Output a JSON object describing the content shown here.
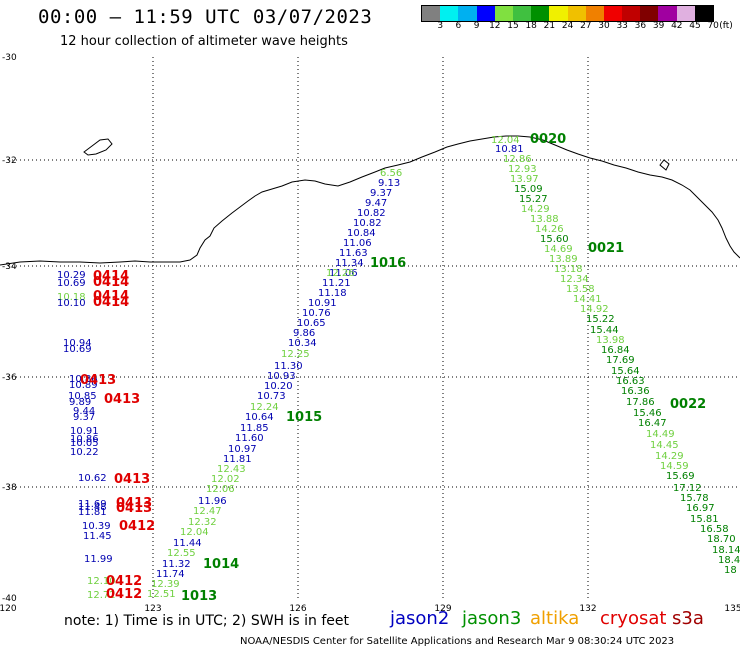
{
  "header": {
    "title": "00:00 – 11:59 UTC 03/07/2023",
    "subtitle": "12 hour collection of altimeter wave heights"
  },
  "color_scale": {
    "unit": "(ft)",
    "colors": [
      "#808080",
      "#00f0f0",
      "#00b0f0",
      "#0000ff",
      "#80e040",
      "#40c040",
      "#009000",
      "#f0f000",
      "#f0c000",
      "#f08000",
      "#f00000",
      "#c00000",
      "#800000",
      "#a000a0",
      "#e0b0e0",
      "#000000"
    ],
    "labels": [
      "3",
      "6",
      "9",
      "12",
      "15",
      "18",
      "21",
      "24",
      "27",
      "30",
      "33",
      "36",
      "39",
      "42",
      "45",
      "70"
    ]
  },
  "map": {
    "x_ticks": [
      "120",
      "123",
      "126",
      "129",
      "132",
      "135"
    ],
    "y_ticks": [
      "-30",
      "-32",
      "-34",
      "-36",
      "-38",
      "-40"
    ],
    "colors": {
      "jason2": "#0000b0",
      "jason3_light": "#70d040",
      "jason3_dark": "#008000",
      "cryosat": "#e00000",
      "coast": "#000000",
      "grid": "#000000"
    },
    "points": [
      {
        "t": "6.56",
        "c": "light"
      },
      {
        "t": "9.13",
        "c": "blue"
      },
      {
        "t": "9.37",
        "c": "blue"
      },
      {
        "t": "9.47",
        "c": "blue"
      },
      {
        "t": "10.82",
        "c": "blue"
      },
      {
        "t": "10.82",
        "c": "blue"
      },
      {
        "t": "10.84",
        "c": "blue"
      },
      {
        "t": "11.06",
        "c": "blue"
      },
      {
        "t": "11.63",
        "c": "blue"
      },
      {
        "t": "11.34",
        "c": "blue"
      },
      {
        "t": "11.06",
        "c": "blue"
      },
      {
        "t": "12.26",
        "c": "light"
      },
      {
        "t": "11.21",
        "c": "blue"
      },
      {
        "t": "11.18",
        "c": "blue"
      },
      {
        "t": "10.91",
        "c": "blue"
      },
      {
        "t": "10.76",
        "c": "blue"
      },
      {
        "t": "10.65",
        "c": "blue"
      },
      {
        "t": "9.86",
        "c": "blue"
      },
      {
        "t": "10.34",
        "c": "blue"
      },
      {
        "t": "12.25",
        "c": "light"
      },
      {
        "t": "11.30",
        "c": "blue"
      },
      {
        "t": "10.93",
        "c": "blue"
      },
      {
        "t": "10.20",
        "c": "blue"
      },
      {
        "t": "10.73",
        "c": "blue"
      },
      {
        "t": "12.24",
        "c": "light"
      },
      {
        "t": "10.64",
        "c": "blue"
      },
      {
        "t": "11.85",
        "c": "blue"
      },
      {
        "t": "11.60",
        "c": "blue"
      },
      {
        "t": "10.97",
        "c": "blue"
      },
      {
        "t": "11.81",
        "c": "blue"
      },
      {
        "t": "12.43",
        "c": "light"
      },
      {
        "t": "12.02",
        "c": "light"
      },
      {
        "t": "12.06",
        "c": "light"
      },
      {
        "t": "11.96",
        "c": "blue"
      },
      {
        "t": "12.47",
        "c": "light"
      },
      {
        "t": "12.32",
        "c": "light"
      },
      {
        "t": "12.04",
        "c": "light"
      },
      {
        "t": "11.44",
        "c": "blue"
      },
      {
        "t": "12.55",
        "c": "light"
      },
      {
        "t": "11.32",
        "c": "blue"
      },
      {
        "t": "11.74",
        "c": "blue"
      },
      {
        "t": "12.39",
        "c": "light"
      },
      {
        "t": "12.51",
        "c": "light"
      },
      {
        "t": "12.04",
        "c": "light"
      },
      {
        "t": "10.81",
        "c": "blue"
      },
      {
        "t": "12.86",
        "c": "light"
      },
      {
        "t": "12.93",
        "c": "light"
      },
      {
        "t": "13.97",
        "c": "light"
      },
      {
        "t": "15.09",
        "c": "dark"
      },
      {
        "t": "15.27",
        "c": "dark"
      },
      {
        "t": "14.29",
        "c": "light"
      },
      {
        "t": "13.88",
        "c": "light"
      },
      {
        "t": "14.26",
        "c": "light"
      },
      {
        "t": "15.60",
        "c": "dark"
      },
      {
        "t": "14.69",
        "c": "light"
      },
      {
        "t": "13.89",
        "c": "light"
      },
      {
        "t": "13.18",
        "c": "light"
      },
      {
        "t": "12.34",
        "c": "light"
      },
      {
        "t": "13.58",
        "c": "light"
      },
      {
        "t": "14.41",
        "c": "light"
      },
      {
        "t": "14.92",
        "c": "light"
      },
      {
        "t": "15.22",
        "c": "dark"
      },
      {
        "t": "15.44",
        "c": "dark"
      },
      {
        "t": "13.98",
        "c": "light"
      },
      {
        "t": "16.84",
        "c": "dark"
      },
      {
        "t": "17.69",
        "c": "dark"
      },
      {
        "t": "15.64",
        "c": "dark"
      },
      {
        "t": "16.63",
        "c": "dark"
      },
      {
        "t": "16.36",
        "c": "dark"
      },
      {
        "t": "17.86",
        "c": "dark"
      },
      {
        "t": "15.46",
        "c": "dark"
      },
      {
        "t": "16.47",
        "c": "dark"
      },
      {
        "t": "14.49",
        "c": "light"
      },
      {
        "t": "14.45",
        "c": "light"
      },
      {
        "t": "14.29",
        "c": "light"
      },
      {
        "t": "14.59",
        "c": "light"
      },
      {
        "t": "15.69",
        "c": "dark"
      },
      {
        "t": "17.12",
        "c": "dark"
      },
      {
        "t": "15.78",
        "c": "dark"
      },
      {
        "t": "16.97",
        "c": "dark"
      },
      {
        "t": "15.81",
        "c": "dark"
      },
      {
        "t": "16.58",
        "c": "dark"
      },
      {
        "t": "18.70",
        "c": "dark"
      },
      {
        "t": "18.14",
        "c": "dark"
      },
      {
        "t": "18.4",
        "c": "dark"
      },
      {
        "t": "18",
        "c": "dark"
      },
      {
        "t": "10.29",
        "c": "blue"
      },
      {
        "t": "10.69",
        "c": "blue"
      },
      {
        "t": "10.18",
        "c": "light"
      },
      {
        "t": "10.10",
        "c": "blue"
      },
      {
        "t": "10.94",
        "c": "blue"
      },
      {
        "t": "10.69",
        "c": "blue"
      },
      {
        "t": "10.86",
        "c": "blue"
      },
      {
        "t": "10.89",
        "c": "blue"
      },
      {
        "t": "10.85",
        "c": "blue"
      },
      {
        "t": "9.89",
        "c": "blue"
      },
      {
        "t": "9.44",
        "c": "blue"
      },
      {
        "t": "9.37",
        "c": "blue"
      },
      {
        "t": "10.91",
        "c": "blue"
      },
      {
        "t": "10.86",
        "c": "blue"
      },
      {
        "t": "10.05",
        "c": "blue"
      },
      {
        "t": "10.22",
        "c": "blue"
      },
      {
        "t": "10.62",
        "c": "blue"
      },
      {
        "t": "11.69",
        "c": "blue"
      },
      {
        "t": "11.81",
        "c": "blue"
      },
      {
        "t": "11.48",
        "c": "blue"
      },
      {
        "t": "10.39",
        "c": "blue"
      },
      {
        "t": "11.45",
        "c": "blue"
      },
      {
        "t": "11.99",
        "c": "blue"
      },
      {
        "t": "12.10",
        "c": "light"
      },
      {
        "t": "12.72",
        "c": "light"
      }
    ],
    "time_labels": [
      {
        "t": "0020",
        "c": "dark"
      },
      {
        "t": "0021",
        "c": "dark"
      },
      {
        "t": "0022",
        "c": "dark"
      },
      {
        "t": "1016",
        "c": "dark"
      },
      {
        "t": "1015",
        "c": "dark"
      },
      {
        "t": "1014",
        "c": "dark"
      },
      {
        "t": "1013",
        "c": "dark"
      },
      {
        "t": "0414",
        "c": "red"
      },
      {
        "t": "0414",
        "c": "red"
      },
      {
        "t": "0414",
        "c": "red"
      },
      {
        "t": "0414",
        "c": "red"
      },
      {
        "t": "0413",
        "c": "red"
      },
      {
        "t": "0413",
        "c": "red"
      },
      {
        "t": "0413",
        "c": "red"
      },
      {
        "t": "0413",
        "c": "red"
      },
      {
        "t": "0413",
        "c": "red"
      },
      {
        "t": "0412",
        "c": "red"
      },
      {
        "t": "0412",
        "c": "red"
      },
      {
        "t": "0412",
        "c": "red"
      }
    ]
  },
  "footer": {
    "note": "note: 1) Time is in UTC; 2) SWH is in feet",
    "satellites": [
      {
        "name": "jason2",
        "color": "#0000c0"
      },
      {
        "name": "jason3",
        "color": "#009000"
      },
      {
        "name": "altika",
        "color": "#f0a000"
      },
      {
        "name": "cryosat",
        "color": "#e00000"
      },
      {
        "name": "s3a",
        "color": "#a00000"
      }
    ],
    "credit": "NOAA/NESDIS Center for Satellite Applications and Research   Mar  9 08:30:24 UTC 2023"
  }
}
